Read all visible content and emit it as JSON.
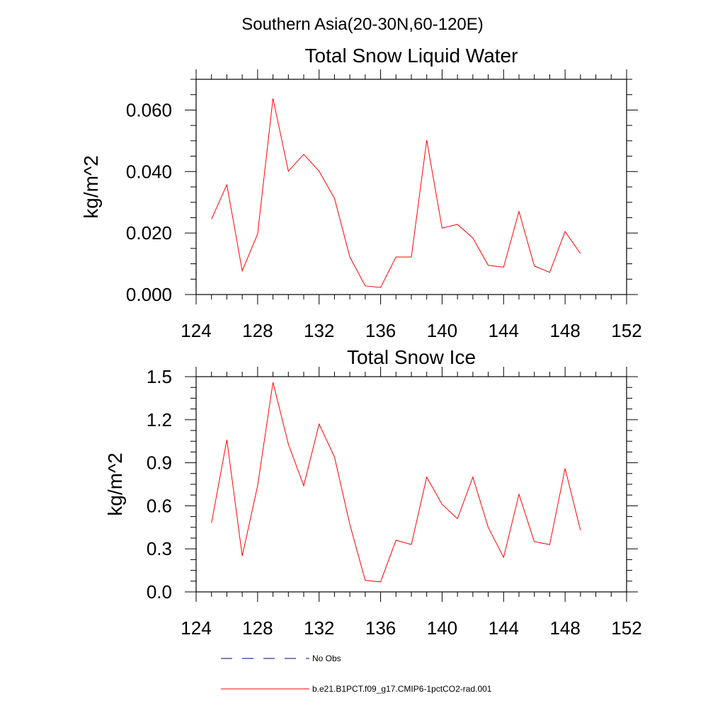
{
  "page": {
    "suptitle": "Southern Asia(20-30N,60-120E)"
  },
  "chart_data": [
    {
      "type": "line",
      "title": "Total Snow Liquid Water",
      "xlabel": "",
      "ylabel": "kg/m^2",
      "xlim": [
        124,
        152
      ],
      "ylim": [
        0,
        0.07
      ],
      "x_ticks": [
        124,
        128,
        132,
        136,
        140,
        144,
        148,
        152
      ],
      "x_tick_labels": [
        "124",
        "128",
        "132",
        "136",
        "140",
        "144",
        "148",
        "152"
      ],
      "y_ticks": [
        0,
        0.02,
        0.04,
        0.06
      ],
      "y_tick_labels": [
        "0.000",
        "0.020",
        "0.040",
        "0.060"
      ],
      "grid": false,
      "series": [
        {
          "name": "b.e21.B1PCT.f09_g17.CMIP6-1pctCO2-rad.001",
          "color": "#ff0000",
          "x": [
            125,
            126,
            127,
            128,
            129,
            130,
            131,
            132,
            133,
            134,
            135,
            136,
            137,
            138,
            139,
            140,
            141,
            142,
            143,
            144,
            145,
            146,
            147,
            148,
            149
          ],
          "values": [
            0.0245,
            0.0357,
            0.0077,
            0.0197,
            0.0638,
            0.0401,
            0.0456,
            0.0401,
            0.0313,
            0.0122,
            0.0028,
            0.0023,
            0.0122,
            0.0122,
            0.0502,
            0.0216,
            0.0228,
            0.0184,
            0.0095,
            0.0089,
            0.027,
            0.0093,
            0.0072,
            0.0205,
            0.0133
          ]
        }
      ]
    },
    {
      "type": "line",
      "title": "Total Snow Ice",
      "xlabel": "",
      "ylabel": "kg/m^2",
      "xlim": [
        124,
        152
      ],
      "ylim": [
        0,
        1.5
      ],
      "x_ticks": [
        124,
        128,
        132,
        136,
        140,
        144,
        148,
        152
      ],
      "x_tick_labels": [
        "124",
        "128",
        "132",
        "136",
        "140",
        "144",
        "148",
        "152"
      ],
      "y_ticks": [
        0,
        0.3,
        0.6,
        0.9,
        1.2,
        1.5
      ],
      "y_tick_labels": [
        "0.0",
        "0.3",
        "0.6",
        "0.9",
        "1.2",
        "1.5"
      ],
      "grid": false,
      "series": [
        {
          "name": "b.e21.B1PCT.f09_g17.CMIP6-1pctCO2-rad.001",
          "color": "#ff0000",
          "x": [
            125,
            126,
            127,
            128,
            129,
            130,
            131,
            132,
            133,
            134,
            135,
            136,
            137,
            138,
            139,
            140,
            141,
            142,
            143,
            144,
            145,
            146,
            147,
            148,
            149
          ],
          "values": [
            0.48,
            1.06,
            0.25,
            0.74,
            1.46,
            1.03,
            0.74,
            1.17,
            0.94,
            0.47,
            0.08,
            0.07,
            0.36,
            0.33,
            0.8,
            0.61,
            0.51,
            0.8,
            0.45,
            0.24,
            0.68,
            0.35,
            0.33,
            0.86,
            0.43
          ]
        }
      ]
    }
  ],
  "legend": {
    "entries": [
      {
        "label": "No Obs",
        "color": "#000080",
        "style": "dashed"
      },
      {
        "label": "b.e21.B1PCT.f09_g17.CMIP6-1pctCO2-rad.001",
        "color": "#ff0000",
        "style": "solid"
      }
    ]
  }
}
